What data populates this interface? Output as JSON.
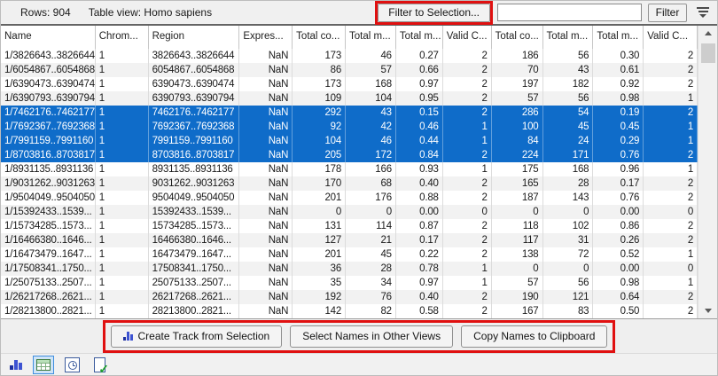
{
  "toolbar": {
    "rows_label": "Rows: 904",
    "view_label": "Table view: Homo sapiens",
    "filter_to_selection_label": "Filter to Selection...",
    "filter_input_value": "",
    "filter_button_label": "Filter"
  },
  "table": {
    "columns": [
      {
        "label": "Name",
        "align": "left"
      },
      {
        "label": "Chrom...",
        "align": "left"
      },
      {
        "label": "Region",
        "align": "left"
      },
      {
        "label": "Expres...",
        "align": "right"
      },
      {
        "label": "Total co...",
        "align": "right"
      },
      {
        "label": "Total m...",
        "align": "right"
      },
      {
        "label": "Total m...",
        "align": "right"
      },
      {
        "label": "Valid C...",
        "align": "right"
      },
      {
        "label": "Total co...",
        "align": "right"
      },
      {
        "label": "Total m...",
        "align": "right"
      },
      {
        "label": "Total m...",
        "align": "right"
      },
      {
        "label": "Valid C...",
        "align": "right"
      }
    ],
    "rows": [
      {
        "selected": false,
        "cells": [
          "1/3826643..3826644",
          "1",
          "3826643..3826644",
          "NaN",
          "173",
          "46",
          "0.27",
          "2",
          "186",
          "56",
          "0.30",
          "2"
        ]
      },
      {
        "selected": false,
        "cells": [
          "1/6054867..6054868",
          "1",
          "6054867..6054868",
          "NaN",
          "86",
          "57",
          "0.66",
          "2",
          "70",
          "43",
          "0.61",
          "2"
        ]
      },
      {
        "selected": false,
        "cells": [
          "1/6390473..6390474",
          "1",
          "6390473..6390474",
          "NaN",
          "173",
          "168",
          "0.97",
          "2",
          "197",
          "182",
          "0.92",
          "2"
        ]
      },
      {
        "selected": false,
        "cells": [
          "1/6390793..6390794",
          "1",
          "6390793..6390794",
          "NaN",
          "109",
          "104",
          "0.95",
          "2",
          "57",
          "56",
          "0.98",
          "1"
        ]
      },
      {
        "selected": true,
        "cells": [
          "1/7462176..7462177",
          "1",
          "7462176..7462177",
          "NaN",
          "292",
          "43",
          "0.15",
          "2",
          "286",
          "54",
          "0.19",
          "2"
        ]
      },
      {
        "selected": true,
        "cells": [
          "1/7692367..7692368",
          "1",
          "7692367..7692368",
          "NaN",
          "92",
          "42",
          "0.46",
          "1",
          "100",
          "45",
          "0.45",
          "1"
        ]
      },
      {
        "selected": true,
        "cells": [
          "1/7991159..7991160",
          "1",
          "7991159..7991160",
          "NaN",
          "104",
          "46",
          "0.44",
          "1",
          "84",
          "24",
          "0.29",
          "1"
        ]
      },
      {
        "selected": true,
        "cells": [
          "1/8703816..8703817",
          "1",
          "8703816..8703817",
          "NaN",
          "205",
          "172",
          "0.84",
          "2",
          "224",
          "171",
          "0.76",
          "2"
        ]
      },
      {
        "selected": false,
        "cells": [
          "1/8931135..8931136",
          "1",
          "8931135..8931136",
          "NaN",
          "178",
          "166",
          "0.93",
          "1",
          "175",
          "168",
          "0.96",
          "1"
        ]
      },
      {
        "selected": false,
        "cells": [
          "1/9031262..9031263",
          "1",
          "9031262..9031263",
          "NaN",
          "170",
          "68",
          "0.40",
          "2",
          "165",
          "28",
          "0.17",
          "2"
        ]
      },
      {
        "selected": false,
        "cells": [
          "1/9504049..9504050",
          "1",
          "9504049..9504050",
          "NaN",
          "201",
          "176",
          "0.88",
          "2",
          "187",
          "143",
          "0.76",
          "2"
        ]
      },
      {
        "selected": false,
        "cells": [
          "1/15392433..1539...",
          "1",
          "15392433..1539...",
          "NaN",
          "0",
          "0",
          "0.00",
          "0",
          "0",
          "0",
          "0.00",
          "0"
        ]
      },
      {
        "selected": false,
        "cells": [
          "1/15734285..1573...",
          "1",
          "15734285..1573...",
          "NaN",
          "131",
          "114",
          "0.87",
          "2",
          "118",
          "102",
          "0.86",
          "2"
        ]
      },
      {
        "selected": false,
        "cells": [
          "1/16466380..1646...",
          "1",
          "16466380..1646...",
          "NaN",
          "127",
          "21",
          "0.17",
          "2",
          "117",
          "31",
          "0.26",
          "2"
        ]
      },
      {
        "selected": false,
        "cells": [
          "1/16473479..1647...",
          "1",
          "16473479..1647...",
          "NaN",
          "201",
          "45",
          "0.22",
          "2",
          "138",
          "72",
          "0.52",
          "1"
        ]
      },
      {
        "selected": false,
        "cells": [
          "1/17508341..1750...",
          "1",
          "17508341..1750...",
          "NaN",
          "36",
          "28",
          "0.78",
          "1",
          "0",
          "0",
          "0.00",
          "0"
        ]
      },
      {
        "selected": false,
        "cells": [
          "1/25075133..2507...",
          "1",
          "25075133..2507...",
          "NaN",
          "35",
          "34",
          "0.97",
          "1",
          "57",
          "56",
          "0.98",
          "1"
        ]
      },
      {
        "selected": false,
        "cells": [
          "1/26217268..2621...",
          "1",
          "26217268..2621...",
          "NaN",
          "192",
          "76",
          "0.40",
          "2",
          "190",
          "121",
          "0.64",
          "2"
        ]
      },
      {
        "selected": false,
        "cells": [
          "1/28213800..2821...",
          "1",
          "28213800..2821...",
          "NaN",
          "142",
          "82",
          "0.58",
          "2",
          "167",
          "83",
          "0.50",
          "2"
        ]
      }
    ]
  },
  "footer": {
    "create_track_label": "Create Track from Selection",
    "select_names_label": "Select Names in Other Views",
    "copy_names_label": "Copy Names to Clipboard"
  },
  "statusbar": {
    "icons": [
      "track-chart-icon",
      "table-view-icon",
      "history-view-icon",
      "element-info-icon"
    ],
    "selected_view": "table-view-icon"
  },
  "colors": {
    "selection_blue": "#0f6cc9",
    "annotation_red": "#e01010"
  }
}
